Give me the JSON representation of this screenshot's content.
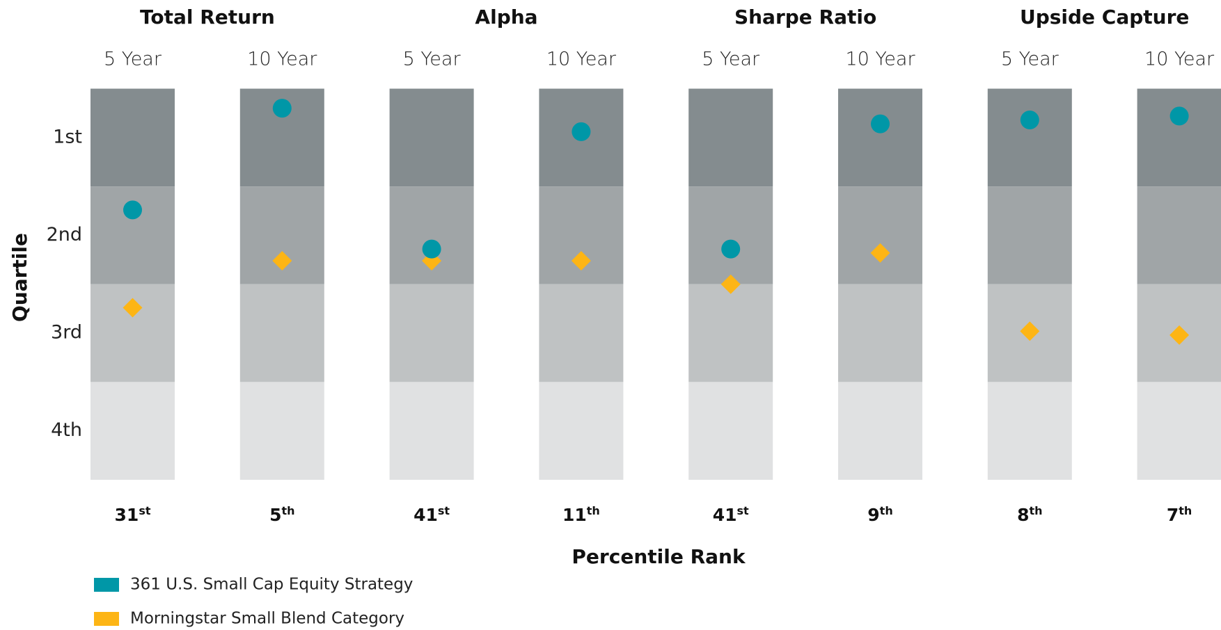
{
  "chart_data": {
    "type": "dot",
    "groups": [
      "Total Return",
      "Alpha",
      "Sharpe Ratio",
      "Upside Capture"
    ],
    "categories": [
      "5 Year",
      "10 Year",
      "5 Year",
      "10 Year",
      "5 Year",
      "10 Year",
      "5 Year",
      "10 Year"
    ],
    "ylabel": "Quartile",
    "xlabel": "Percentile Rank",
    "ylim": [
      0,
      100
    ],
    "bands": [
      {
        "label": "1st",
        "range": [
          0,
          25
        ],
        "color": "#848c8f"
      },
      {
        "label": "2nd",
        "range": [
          25,
          50
        ],
        "color": "#a0a5a7"
      },
      {
        "label": "3rd",
        "range": [
          50,
          75
        ],
        "color": "#bfc2c3"
      },
      {
        "label": "4th",
        "range": [
          75,
          100
        ],
        "color": "#e0e1e2"
      }
    ],
    "series": [
      {
        "name": "361 U.S. Small Cap Equity Strategy",
        "color": "#0097a7",
        "marker": "circle",
        "values": [
          31,
          5,
          41,
          11,
          41,
          9,
          8,
          7
        ],
        "value_labels": [
          "31st",
          "5th",
          "41st",
          "11th",
          "41st",
          "9th",
          "8th",
          "7th"
        ]
      },
      {
        "name": "Morningstar Small Blend Category",
        "color": "#fdb515",
        "marker": "diamond",
        "values": [
          56,
          44,
          44,
          44,
          50,
          42,
          62,
          63
        ]
      }
    ]
  }
}
